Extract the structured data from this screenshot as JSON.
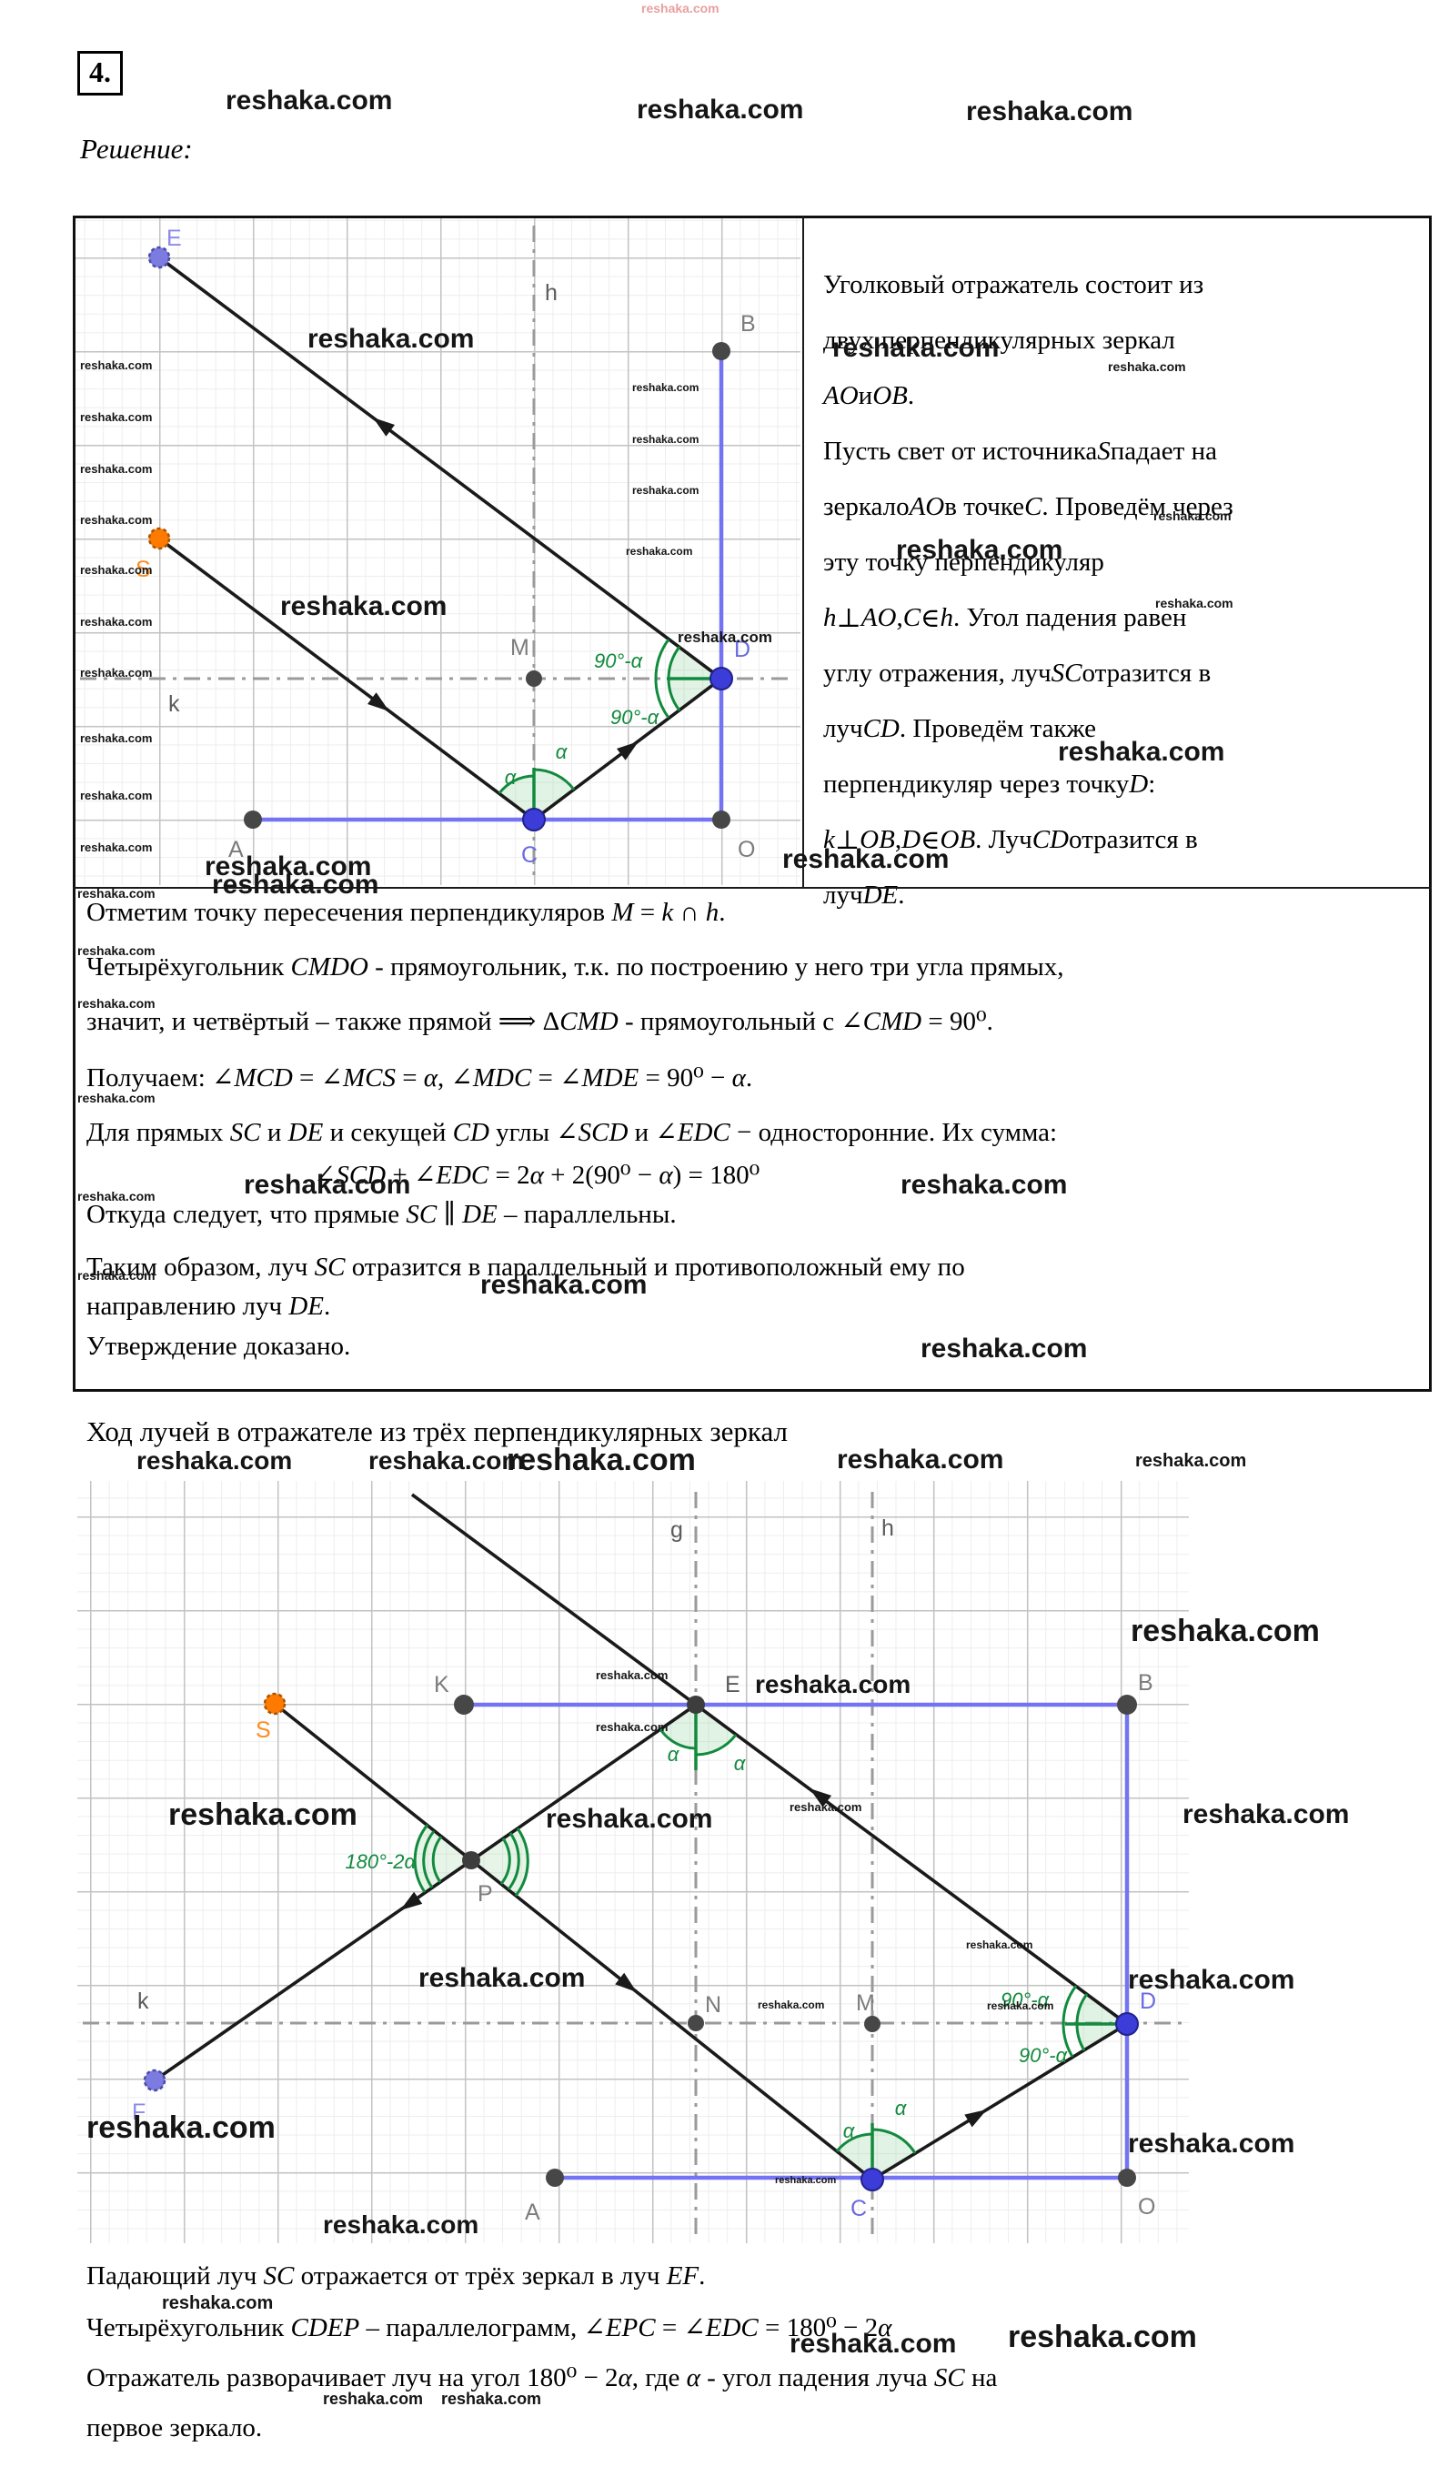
{
  "watermark": "reshaka.com",
  "problem_number": "4.",
  "solution_label": "Решение:",
  "right_column": {
    "lines": [
      "Уголковый отражатель состоит из",
      "двух перпендикулярных зеркал",
      "AO и OB.",
      "Пусть свет от источника S падает на",
      "зеркало AO в точке C. Проведём через",
      "эту точку перпендикуляр",
      "h ⊥ AO, C ∈ h. Угол падения равен",
      "углу отражения, луч SC отразится в",
      "луч CD. Проведём также",
      "перпендикуляр через точку D:",
      "k ⊥ OB, D ∈ OB. Луч CD отразится в",
      "луч DE."
    ]
  },
  "middle_block": {
    "lines": [
      "Отметим точку пересечения перпендикуляров M = k ∩ h.",
      "Четырёхугольник CMDO - прямоугольник, т.к. по построению у него три угла прямых,",
      "значит, и четвёртый – также прямой ⟹ ΔCMD - прямоугольный с ∠CMD = 90⁰.",
      "Получаем: ∠MCD = ∠MCS = α, ∠MDC = ∠MDE = 90⁰ − α.",
      "Для прямых SC и DE и секущей CD углы ∠SCD и ∠EDC − односторонние. Их сумма:"
    ],
    "formula": "∠SCD + ∠EDC = 2α + 2(90⁰ − α) = 180⁰",
    "after_lines": [
      "Откуда следует, что прямые SC ∥ DE – параллельны.",
      "Таким образом, луч SC отразится в параллельный и противоположный ему по",
      "направлению луч DE.",
      "Утверждение доказано."
    ]
  },
  "section2_title": "Ход лучей в отражателе из трёх перпендикулярных зеркал",
  "bottom_block": {
    "lines": [
      "Падающий луч SC отражается от трёх зеркал в луч EF.",
      "Четырёхугольник CDEP – параллелограмм, ∠EPC = ∠EDC = 180⁰ − 2α",
      "Отражатель разворачивает луч на угол 180⁰ − 2α, где α - угол падения луча SC на",
      "первое зеркало."
    ]
  },
  "figure1": {
    "points": {
      "E": "E",
      "S": "S",
      "A": "A",
      "C": "C",
      "O": "O",
      "D": "D",
      "M": "M",
      "B": "B"
    },
    "axes": {
      "h": "h",
      "k": "k"
    },
    "angles": {
      "alpha": "α",
      "comp": "90°-α"
    },
    "colors": {
      "mirror": "#7373f3",
      "ray": "#1a1a1a",
      "green": "#128a3d",
      "blue_point": "#3c3cd9",
      "orange_point": "#ff7a00",
      "violet_point": "#7b7be0",
      "dark_point": "#474747"
    }
  },
  "figure2": {
    "points": {
      "S": "S",
      "K": "K",
      "E": "E",
      "B": "B",
      "P": "P",
      "N": "N",
      "M": "M",
      "D": "D",
      "F": "F",
      "A": "A",
      "C": "C",
      "O": "O"
    },
    "axes": {
      "g": "g",
      "h": "h",
      "k": "k"
    },
    "angles": {
      "alpha": "α",
      "comp": "90°-α",
      "vertex": "180°-2α"
    }
  }
}
